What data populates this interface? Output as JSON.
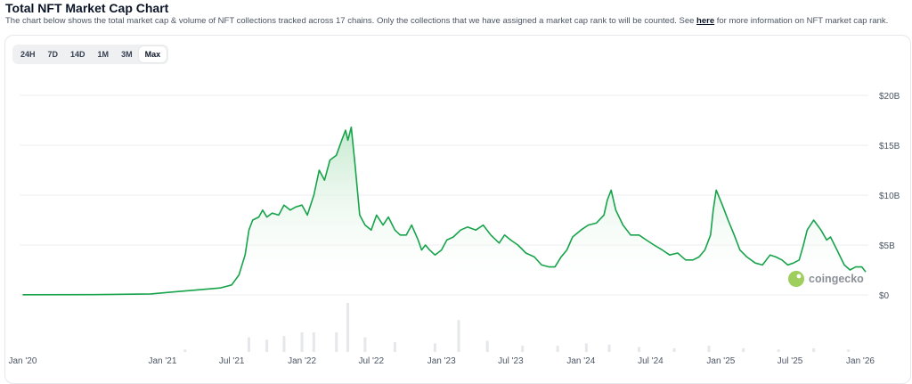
{
  "header": {
    "title": "Total NFT Market Cap Chart",
    "description_before": "The chart below shows the total market cap & volume of NFT collections tracked across 17 chains. Only the collections that we have assigned a market cap rank to will be counted. See ",
    "description_link": "here",
    "description_after": " for more information on NFT market cap rank."
  },
  "range_tabs": [
    {
      "label": "24H",
      "active": false
    },
    {
      "label": "7D",
      "active": false
    },
    {
      "label": "14D",
      "active": false
    },
    {
      "label": "1M",
      "active": false
    },
    {
      "label": "3M",
      "active": false
    },
    {
      "label": "Max",
      "active": true
    }
  ],
  "watermark": {
    "text": "coingecko"
  },
  "colors": {
    "line": "#16a34a",
    "fill_top": "#bfe7c9",
    "volume": "#e5e7eb",
    "grid": "#eceef1",
    "logo": "#8dc63f"
  },
  "chart_data": {
    "type": "area",
    "title": "",
    "xlabel": "",
    "ylabel": "",
    "x_tick_labels": [
      "Jan '20",
      "Jan '21",
      "Jul '21",
      "Jan '22",
      "Jul '22",
      "Jan '23",
      "Jul '23",
      "Jan '24",
      "Jul '24",
      "Jan '25",
      "Jul '25",
      "Jan '26"
    ],
    "y_tick_labels": [
      "$0",
      "$5B",
      "$10B",
      "$15B",
      "$20B"
    ],
    "ylim": [
      0,
      20
    ],
    "y_unit": "USD billions",
    "grid": true,
    "series": [
      {
        "type": "area",
        "x": [
          "2020-01-01",
          "2020-07-01",
          "2020-12-01",
          "2021-02-01",
          "2021-04-01",
          "2021-06-01",
          "2021-07-01",
          "2021-07-20",
          "2021-08-05",
          "2021-08-15",
          "2021-08-25",
          "2021-09-10",
          "2021-09-20",
          "2021-10-01",
          "2021-10-15",
          "2021-11-01",
          "2021-11-15",
          "2021-12-01",
          "2021-12-15",
          "2022-01-01",
          "2022-01-15",
          "2022-02-01",
          "2022-02-15",
          "2022-03-01",
          "2022-03-15",
          "2022-04-01",
          "2022-04-15",
          "2022-04-25",
          "2022-05-01",
          "2022-05-10",
          "2022-05-20",
          "2022-06-01",
          "2022-06-15",
          "2022-07-01",
          "2022-07-15",
          "2022-08-01",
          "2022-08-15",
          "2022-09-01",
          "2022-09-15",
          "2022-10-01",
          "2022-10-15",
          "2022-11-01",
          "2022-11-10",
          "2022-11-20",
          "2022-12-01",
          "2022-12-15",
          "2023-01-01",
          "2023-01-15",
          "2023-02-01",
          "2023-02-20",
          "2023-03-10",
          "2023-04-01",
          "2023-04-20",
          "2023-05-10",
          "2023-06-01",
          "2023-06-15",
          "2023-07-01",
          "2023-07-20",
          "2023-08-10",
          "2023-09-01",
          "2023-09-20",
          "2023-10-10",
          "2023-10-25",
          "2023-11-10",
          "2023-11-25",
          "2023-12-10",
          "2024-01-01",
          "2024-01-20",
          "2024-02-10",
          "2024-03-01",
          "2024-03-10",
          "2024-03-20",
          "2024-04-01",
          "2024-04-20",
          "2024-05-10",
          "2024-06-01",
          "2024-06-20",
          "2024-07-10",
          "2024-08-01",
          "2024-08-20",
          "2024-09-10",
          "2024-10-01",
          "2024-10-20",
          "2024-11-05",
          "2024-11-20",
          "2024-12-05",
          "2024-12-12",
          "2024-12-20",
          "2025-01-05",
          "2025-01-20",
          "2025-02-05",
          "2025-02-20",
          "2025-03-10",
          "2025-04-01",
          "2025-04-20",
          "2025-05-10",
          "2025-05-25",
          "2025-06-10",
          "2025-06-25",
          "2025-07-10",
          "2025-07-25",
          "2025-08-05",
          "2025-08-15",
          "2025-09-01",
          "2025-09-20",
          "2025-10-05",
          "2025-10-15",
          "2025-11-01",
          "2025-11-20",
          "2025-12-05",
          "2025-12-20",
          "2026-01-05",
          "2026-01-15"
        ],
        "values": [
          0.02,
          0.03,
          0.1,
          0.3,
          0.5,
          0.7,
          1.0,
          2.0,
          4.0,
          6.5,
          7.5,
          7.8,
          8.5,
          7.8,
          8.2,
          8.0,
          9.0,
          8.5,
          8.8,
          9.0,
          8.0,
          10.0,
          12.5,
          11.5,
          13.5,
          14.0,
          15.5,
          16.5,
          15.5,
          16.8,
          13.0,
          8.0,
          7.0,
          6.5,
          8.0,
          7.0,
          7.8,
          6.5,
          6.0,
          6.0,
          7.0,
          5.5,
          4.5,
          5.0,
          4.5,
          4.0,
          4.5,
          5.5,
          5.8,
          6.5,
          6.8,
          6.5,
          7.0,
          6.0,
          5.2,
          6.0,
          5.5,
          5.0,
          4.2,
          3.8,
          3.0,
          2.8,
          2.8,
          3.8,
          4.5,
          5.8,
          6.5,
          7.0,
          7.2,
          8.0,
          9.5,
          10.5,
          8.5,
          7.0,
          6.0,
          6.0,
          5.5,
          5.0,
          4.5,
          4.0,
          4.2,
          3.5,
          3.5,
          3.8,
          4.5,
          6.0,
          8.5,
          10.5,
          9.0,
          7.5,
          6.0,
          4.5,
          3.8,
          3.2,
          3.0,
          4.0,
          3.8,
          3.5,
          3.0,
          3.2,
          3.5,
          5.0,
          6.5,
          7.5,
          6.5,
          5.5,
          5.8,
          4.5,
          3.0,
          2.5,
          2.8,
          2.8,
          2.3
        ]
      },
      {
        "name": "",
        "type": "volume-bars",
        "x": [
          "2021-03-01",
          "2021-08-15",
          "2021-10-01",
          "2021-11-15",
          "2022-01-01",
          "2022-02-01",
          "2022-04-01",
          "2022-05-01",
          "2022-06-15",
          "2022-09-01",
          "2022-12-15",
          "2023-02-15",
          "2023-05-01",
          "2023-08-01",
          "2023-11-01",
          "2024-01-15",
          "2024-03-15",
          "2024-06-01",
          "2024-09-01",
          "2024-12-01",
          "2025-03-01",
          "2025-06-01",
          "2025-09-01",
          "2025-12-01"
        ],
        "values": [
          0.2,
          1.2,
          1.0,
          1.3,
          1.6,
          1.6,
          1.6,
          4.0,
          1.2,
          0.8,
          0.7,
          2.6,
          0.9,
          0.5,
          0.5,
          0.7,
          0.6,
          0.4,
          0.3,
          0.5,
          0.3,
          0.2,
          0.3,
          0.2
        ]
      }
    ]
  }
}
